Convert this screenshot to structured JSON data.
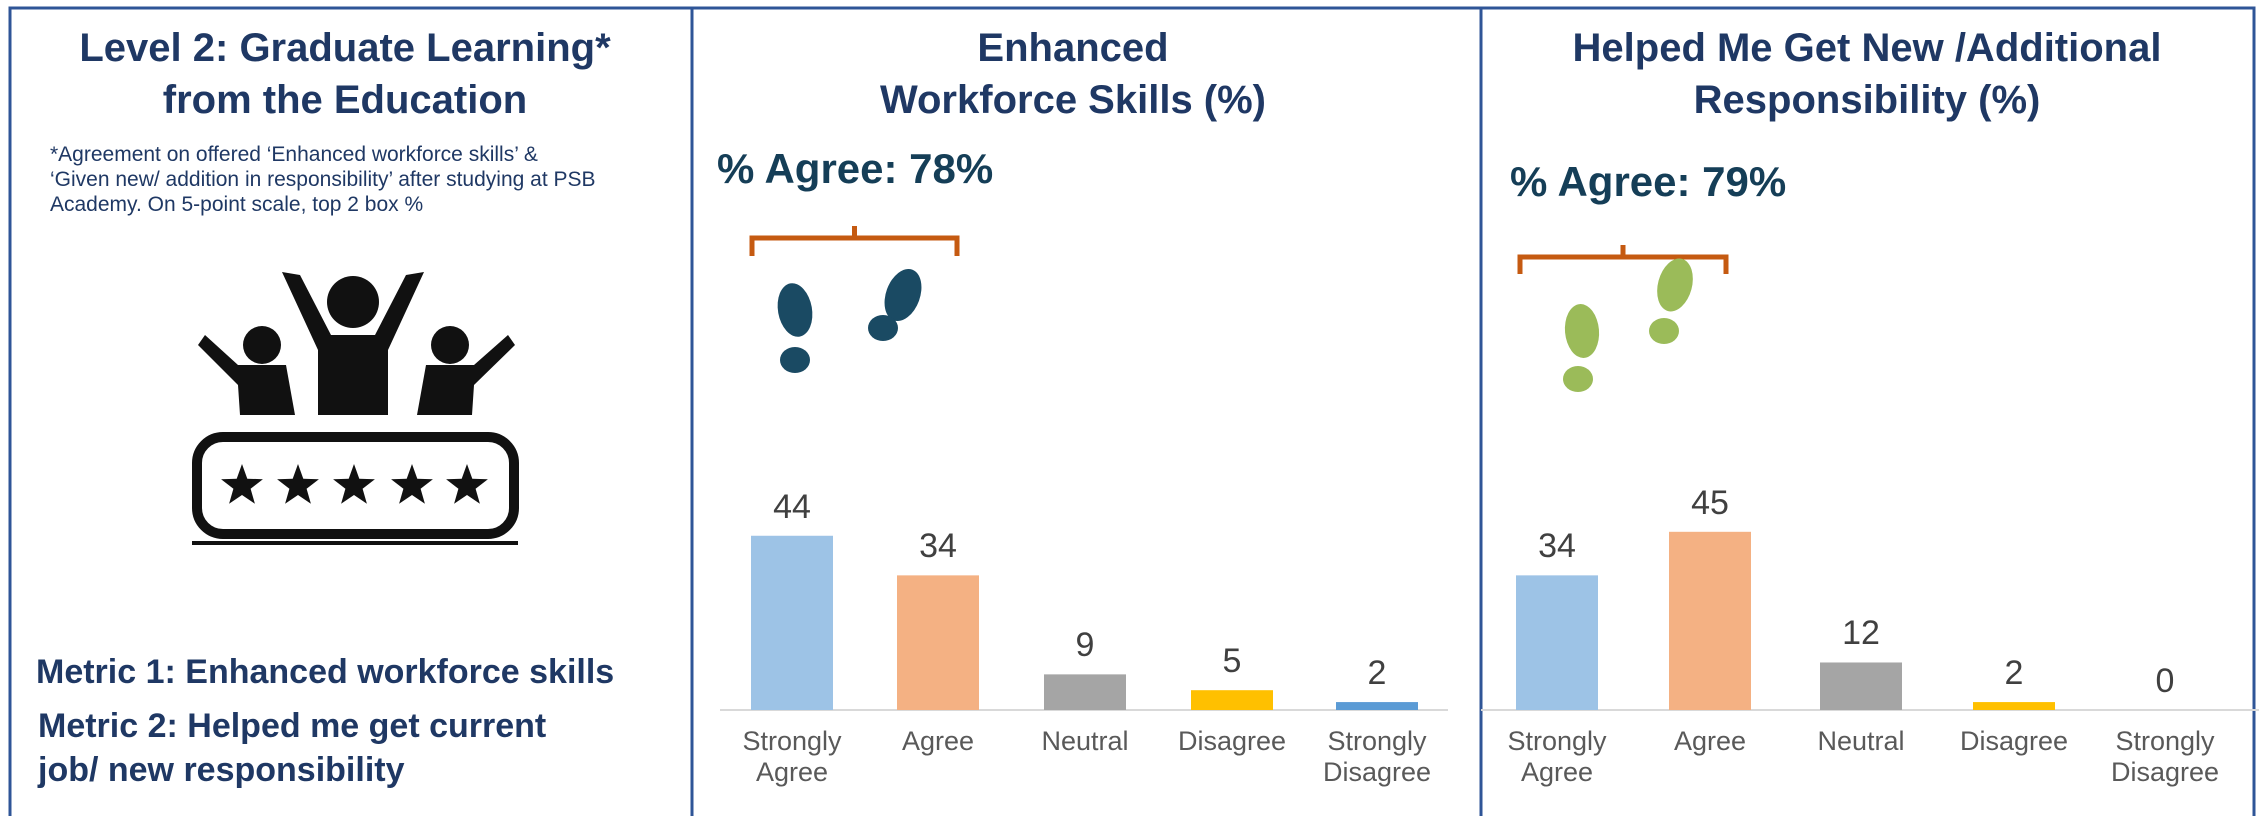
{
  "panel": {
    "title": "Level 2: Graduate Learning*\nfrom the Education",
    "note": "*Agreement on offered ‘Enhanced workforce skills’ &\n‘Given new/ addition in responsibility’ after studying at PSB\nAcademy. On 5-point scale, top 2 box %",
    "metrics": [
      "Metric 1: Enhanced workforce skills",
      "Metric 2: Helped me get current\njob/ new responsibility"
    ]
  },
  "chart_data": [
    {
      "type": "bar",
      "title": "Enhanced\nWorkforce Skills (%)",
      "annotation": "% Agree:  78%",
      "categories": [
        "Strongly Agree",
        "Agree",
        "Neutral",
        "Disagree",
        "Strongly Disagree"
      ],
      "values": [
        44,
        34,
        9,
        5,
        2
      ],
      "colors": [
        "#9dc3e6",
        "#f4b183",
        "#a5a5a5",
        "#ffc000",
        "#5b9bd5"
      ],
      "icon_color": "#1a4a63",
      "ylim": [
        0,
        50
      ]
    },
    {
      "type": "bar",
      "title": "Helped Me Get New /Additional\nResponsibility (%)",
      "annotation": "% Agree:  79%",
      "categories": [
        "Strongly Agree",
        "Agree",
        "Neutral",
        "Disagree",
        "Strongly Disagree"
      ],
      "values": [
        34,
        45,
        12,
        2,
        0
      ],
      "colors": [
        "#9dc3e6",
        "#f4b183",
        "#a5a5a5",
        "#ffc000",
        "#5b9bd5"
      ],
      "icon_color": "#9bbb59",
      "ylim": [
        0,
        50
      ]
    }
  ]
}
